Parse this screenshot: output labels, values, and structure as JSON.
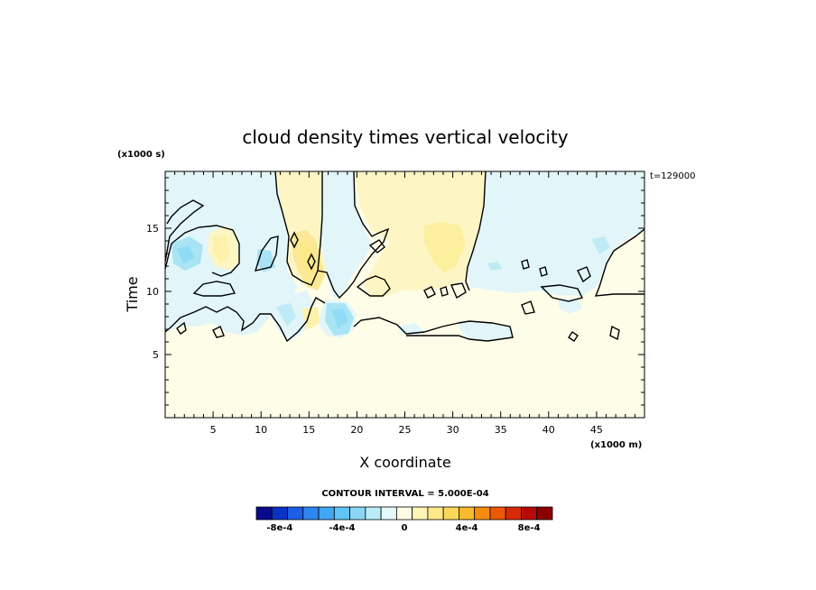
{
  "chart_data": {
    "type": "heatmap",
    "title": "cloud density times vertical velocity",
    "xlabel": "X coordinate",
    "ylabel": "Time",
    "x_unit": "(x1000 m)",
    "y_unit": "(x1000 s)",
    "time_stamp": "t=129000",
    "xlim": [
      0,
      50
    ],
    "ylim": [
      0,
      19.5
    ],
    "x_ticks": [
      5,
      10,
      15,
      20,
      25,
      30,
      35,
      40,
      45
    ],
    "y_ticks": [
      5,
      10,
      15
    ],
    "contour_interval_text": "CONTOUR INTERVAL = 5.000E-04",
    "colorbar": {
      "colors": [
        "#0a0a8c",
        "#0b33c8",
        "#1a5fe6",
        "#2e86f0",
        "#41a6f4",
        "#62c4f6",
        "#8ad8f4",
        "#b9ecf6",
        "#e4f8fa",
        "#fdfde6",
        "#fdf5b8",
        "#fde98a",
        "#fcd85a",
        "#fbb92c",
        "#f58c10",
        "#ed5808",
        "#d82a06",
        "#b80a0a",
        "#8c0000"
      ],
      "tick_labels": [
        "-8e-4",
        "-4e-4",
        "0",
        "4e-4",
        "8e-4"
      ],
      "tick_values": [
        -0.0008,
        -0.0004,
        0,
        0.0004,
        0.0008
      ],
      "vmin": -0.00095,
      "vmax": 0.00095
    },
    "background_color": "#fefde8",
    "negative_region_color": "#e2f6fa",
    "positive_region_color": "#fdf6c4"
  }
}
